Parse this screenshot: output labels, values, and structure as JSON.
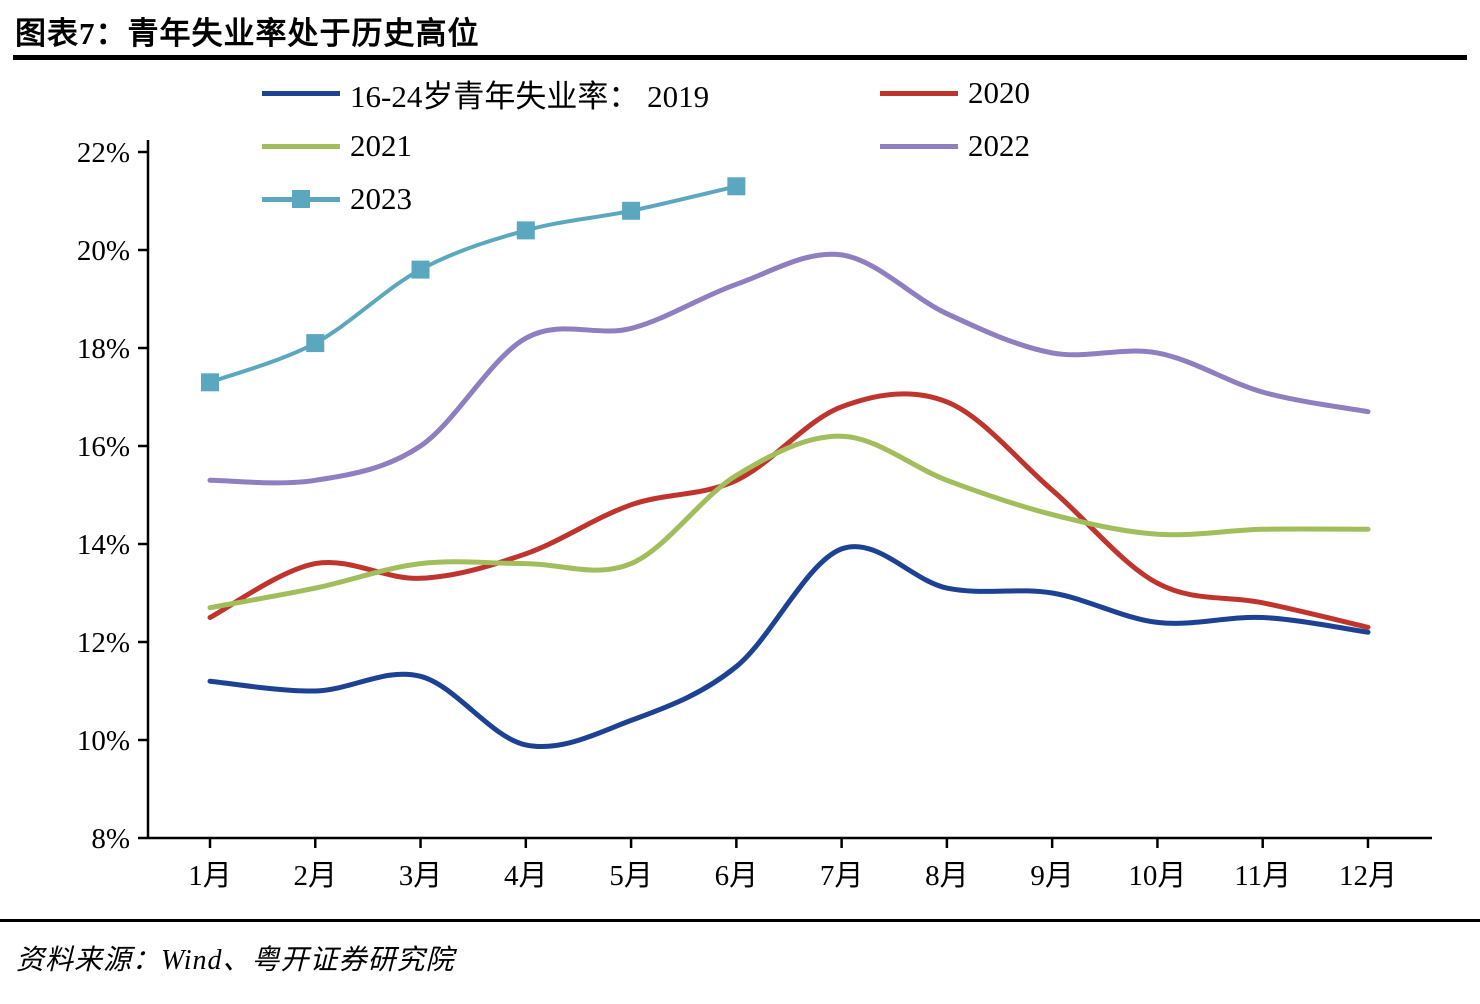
{
  "title": "图表7：青年失业率处于历史高位",
  "source": "资料来源：Wind、粤开证券研究院",
  "chart_data": {
    "type": "line",
    "title": "图表7：青年失业率处于历史高位",
    "xlabel": "",
    "ylabel": "",
    "grid": false,
    "legend_position": "top",
    "ylim": [
      8,
      22
    ],
    "y_ticks": [
      8,
      10,
      12,
      14,
      16,
      18,
      20,
      22
    ],
    "y_tick_labels": [
      "8%",
      "10%",
      "12%",
      "14%",
      "16%",
      "18%",
      "20%",
      "22%"
    ],
    "x": [
      "1月",
      "2月",
      "3月",
      "4月",
      "5月",
      "6月",
      "7月",
      "8月",
      "9月",
      "10月",
      "11月",
      "12月"
    ],
    "series": [
      {
        "name": "2019",
        "legend_label": "16-24岁青年失业率： 2019",
        "color": "#1d4294",
        "marker": "none",
        "values": [
          11.2,
          11.0,
          11.3,
          9.9,
          10.4,
          11.5,
          13.9,
          13.1,
          13.0,
          12.4,
          12.5,
          12.2
        ]
      },
      {
        "name": "2020",
        "legend_label": "2020",
        "color": "#c0342e",
        "marker": "none",
        "values": [
          12.5,
          13.6,
          13.3,
          13.8,
          14.8,
          15.3,
          16.8,
          16.9,
          15.1,
          13.2,
          12.8,
          12.3
        ]
      },
      {
        "name": "2021",
        "legend_label": "2021",
        "color": "#a2bd5c",
        "marker": "none",
        "values": [
          12.7,
          13.1,
          13.6,
          13.6,
          13.6,
          15.4,
          16.2,
          15.3,
          14.6,
          14.2,
          14.3,
          14.3
        ]
      },
      {
        "name": "2022",
        "legend_label": "2022",
        "color": "#8f7ec0",
        "marker": "none",
        "values": [
          15.3,
          15.3,
          16.0,
          18.2,
          18.4,
          19.3,
          19.9,
          18.7,
          17.9,
          17.9,
          17.1,
          16.7
        ]
      },
      {
        "name": "2023",
        "legend_label": "2023",
        "color": "#5ba7c0",
        "marker": "square",
        "values": [
          17.3,
          18.1,
          19.6,
          20.4,
          20.8,
          21.3
        ]
      }
    ]
  }
}
